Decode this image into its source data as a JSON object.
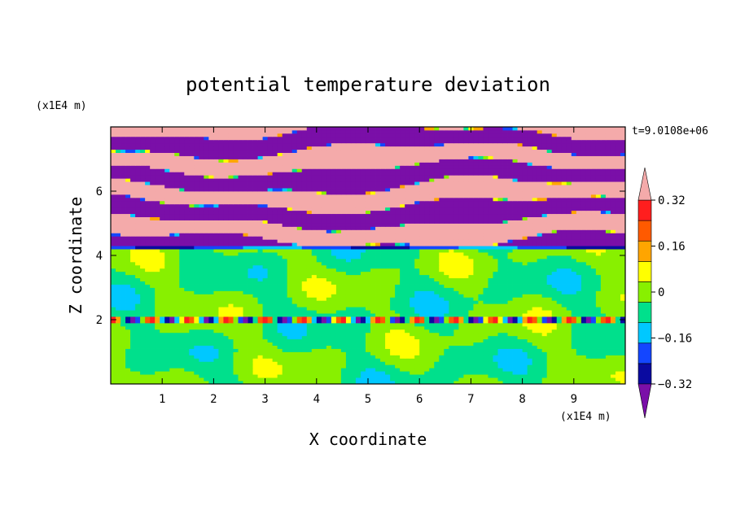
{
  "chart_data": {
    "type": "heatmap",
    "title": "potential temperature deviation",
    "xlabel": "X coordinate",
    "ylabel": "Z coordinate",
    "x_unit": "(x1E4 m)",
    "y_unit": "(x1E4 m)",
    "time_label": "t=9.0108e+06",
    "xlim": [
      0,
      10
    ],
    "ylim": [
      0,
      8
    ],
    "x_ticks": [
      1,
      2,
      3,
      4,
      5,
      6,
      7,
      8,
      9
    ],
    "y_ticks": [
      2,
      4,
      6
    ],
    "colorbar": {
      "tick_labels": [
        "0.32",
        "0.16",
        "0",
        "−0.16",
        "−0.32"
      ],
      "tick_values": [
        0.32,
        0.16,
        0,
        -0.16,
        -0.32
      ],
      "levels": [
        -0.4,
        -0.32,
        -0.24,
        -0.16,
        -0.08,
        0,
        0.08,
        0.16,
        0.24,
        0.32,
        0.4
      ],
      "colors": [
        "#7a0fa8",
        "#0a0aa0",
        "#1446ff",
        "#00c8ff",
        "#00e08c",
        "#88f000",
        "#ffff00",
        "#ffa500",
        "#ff5a00",
        "#ff1e1e",
        "#f4aaaa"
      ],
      "under_color": "#7a0fa8",
      "over_color": "#f4aaaa"
    },
    "regions": [
      {
        "z_range": [
          4.3,
          8
        ],
        "description": "layered bands alternating",
        "levels": [
          -0.4,
          0.4
        ]
      },
      {
        "z_range": [
          4.2,
          4.7
        ],
        "description": "negative band",
        "levels": [
          -0.32,
          -0.16
        ]
      },
      {
        "z_range": [
          2.1,
          4.2
        ],
        "description": "field near zero",
        "levels": [
          -0.08,
          0.08
        ]
      },
      {
        "z_range": [
          1.95,
          2.05
        ],
        "description": "thin mixed layer",
        "levels": [
          -0.32,
          0.32
        ]
      },
      {
        "z_range": [
          0,
          1.95
        ],
        "description": "field near zero",
        "levels": [
          -0.08,
          0.08
        ]
      }
    ]
  }
}
